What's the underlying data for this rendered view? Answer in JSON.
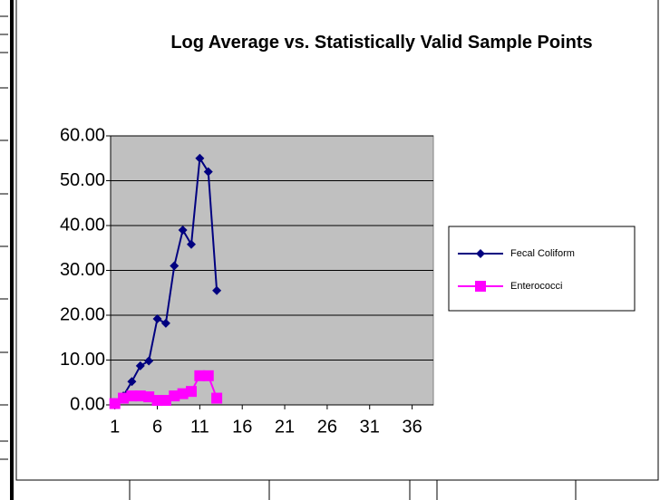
{
  "chart_data": {
    "type": "line",
    "title": "Log Average vs. Statistically Valid Sample Points",
    "x": [
      1,
      2,
      3,
      4,
      5,
      6,
      7,
      8,
      9,
      10,
      11,
      12,
      13
    ],
    "xlim": [
      0.5,
      38.5
    ],
    "xticks": [
      1,
      6,
      11,
      16,
      21,
      26,
      31,
      36
    ],
    "ylim": [
      0,
      60
    ],
    "yticks": [
      {
        "value": 0,
        "label": "0.00"
      },
      {
        "value": 10,
        "label": "10.00"
      },
      {
        "value": 20,
        "label": "20.00"
      },
      {
        "value": 30,
        "label": "30.00"
      },
      {
        "value": 40,
        "label": "40.00"
      },
      {
        "value": 50,
        "label": "50.00"
      },
      {
        "value": 60,
        "label": "60.00"
      }
    ],
    "grid": true,
    "legend": "right",
    "series": [
      {
        "name": "Fecal Coliform",
        "color": "#000080",
        "marker": "diamond",
        "values": [
          0.5,
          2,
          5.2,
          8.7,
          9.8,
          19.2,
          18.2,
          31,
          39,
          35.8,
          55,
          52,
          25.5
        ]
      },
      {
        "name": "Enterococci",
        "color": "#ff00ff",
        "marker": "square",
        "values": [
          0.3,
          1.5,
          2,
          2,
          1.8,
          1,
          1,
          2,
          2.5,
          3,
          6.5,
          6.5,
          1.5
        ]
      }
    ]
  }
}
